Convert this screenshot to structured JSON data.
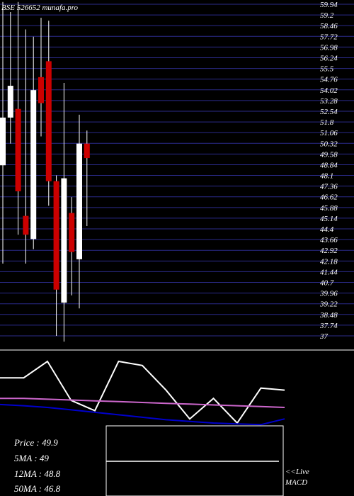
{
  "watermark": "BSE 526652 munafa.pro",
  "chart_data": [
    {
      "type": "candlestick",
      "y_ticks": [
        59.94,
        59.2,
        58.46,
        57.72,
        56.98,
        56.24,
        55.5,
        54.76,
        54.02,
        53.28,
        52.54,
        51.8,
        51.06,
        50.32,
        49.58,
        48.84,
        48.1,
        47.36,
        46.62,
        45.88,
        45.14,
        44.4,
        43.66,
        42.92,
        42.18,
        41.44,
        40.7,
        39.96,
        39.22,
        38.48,
        37.74,
        37
      ],
      "y_tick_labels": [
        "59.94",
        "59.2",
        "58.46",
        "57.72",
        "56.98",
        "56.24",
        "55.5",
        "54.76",
        "54.02",
        "53.28",
        "52.54",
        "51.8",
        "51.06",
        "50.32",
        "49.58",
        "48.84",
        "48.1",
        "47.36",
        "46.62",
        "45.88",
        "45.14",
        "44.4",
        "43.66",
        "42.92",
        "42.18",
        "41.44",
        "40.7",
        "39.96",
        "39.22",
        "38.48",
        "37.74",
        "37"
      ],
      "ylim": [
        37,
        59.94
      ],
      "candles": [
        {
          "open": 48.8,
          "close": 52.1,
          "high": 60.1,
          "low": 42.0,
          "color": "white"
        },
        {
          "open": 52.1,
          "close": 54.3,
          "high": 59.4,
          "low": 50.3,
          "color": "white"
        },
        {
          "open": 52.7,
          "close": 47.0,
          "high": 60.1,
          "low": 44.0,
          "color": "red"
        },
        {
          "open": 45.3,
          "close": 44.0,
          "high": 58.2,
          "low": 42.0,
          "color": "red"
        },
        {
          "open": 43.7,
          "close": 54.0,
          "high": 57.7,
          "low": 43.0,
          "color": "white"
        },
        {
          "open": 54.9,
          "close": 53.1,
          "high": 59.0,
          "low": 50.8,
          "color": "red"
        },
        {
          "open": 56.0,
          "close": 47.7,
          "high": 58.8,
          "low": 46.0,
          "color": "red"
        },
        {
          "open": 47.7,
          "close": 40.2,
          "high": 48.1,
          "low": 37.0,
          "color": "red"
        },
        {
          "open": 39.3,
          "close": 47.9,
          "high": 54.5,
          "low": 36.6,
          "color": "white"
        },
        {
          "open": 45.5,
          "close": 42.8,
          "high": 46.6,
          "low": 39.8,
          "color": "red"
        },
        {
          "open": 42.3,
          "close": 50.3,
          "high": 52.3,
          "low": 38.9,
          "color": "white"
        },
        {
          "open": 50.3,
          "close": 49.3,
          "high": 51.2,
          "low": 44.6,
          "color": "red"
        }
      ]
    },
    {
      "type": "line",
      "series": [
        {
          "color": "#ffffff",
          "values": [
            0.6,
            0.6,
            1.0,
            0.05,
            -0.2,
            1.0,
            0.9,
            0.3,
            -0.4,
            0.1,
            -0.5,
            0.35,
            0.3
          ]
        },
        {
          "color": "#cc66cc",
          "values": [
            0.1,
            0.1,
            0.08,
            0.06,
            0.04,
            0.02,
            0.0,
            -0.02,
            -0.04,
            -0.06,
            -0.08,
            -0.1,
            -0.12
          ]
        },
        {
          "color": "#0000cc",
          "values": [
            -0.05,
            -0.08,
            -0.12,
            -0.18,
            -0.24,
            -0.3,
            -0.36,
            -0.42,
            -0.46,
            -0.5,
            -0.52,
            -0.54,
            -0.4
          ]
        }
      ]
    }
  ],
  "info": {
    "price": "Price   : 49.9",
    "ma5": "5MA : 49",
    "ma12": "12MA : 48.8",
    "ma50": "50MA : 46.8"
  },
  "macd": {
    "line1": "<<Live",
    "line2": "MACD"
  }
}
